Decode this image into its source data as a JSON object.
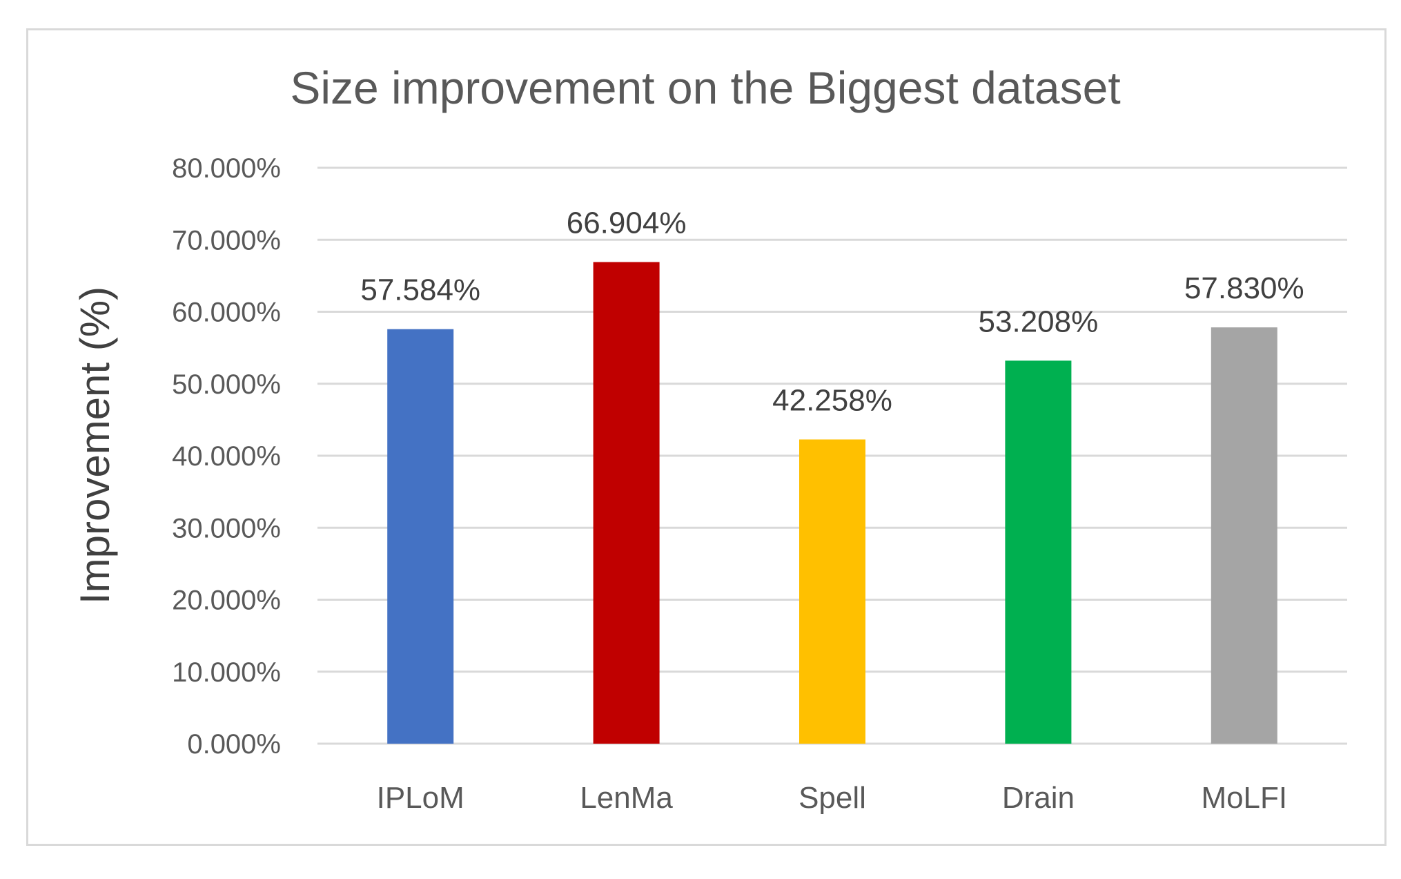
{
  "chart_data": {
    "type": "bar",
    "title": "Size improvement on the Biggest dataset",
    "xlabel": "",
    "ylabel": "Improvement (%)",
    "categories": [
      "IPLoM",
      "LenMa",
      "Spell",
      "Drain",
      "MoLFI"
    ],
    "values": [
      57.584,
      66.904,
      42.258,
      53.208,
      57.83
    ],
    "value_labels": [
      "57.584%",
      "66.904%",
      "42.258%",
      "53.208%",
      "57.830%"
    ],
    "colors": [
      "#4472c4",
      "#c00000",
      "#ffc000",
      "#00b050",
      "#a5a5a5"
    ],
    "ylim": [
      0,
      80
    ],
    "y_ticks": [
      0,
      10,
      20,
      30,
      40,
      50,
      60,
      70,
      80
    ],
    "y_tick_labels": [
      "0.000%",
      "10.000%",
      "20.000%",
      "30.000%",
      "40.000%",
      "50.000%",
      "60.000%",
      "70.000%",
      "80.000%"
    ],
    "grid": true,
    "legend": "none"
  }
}
